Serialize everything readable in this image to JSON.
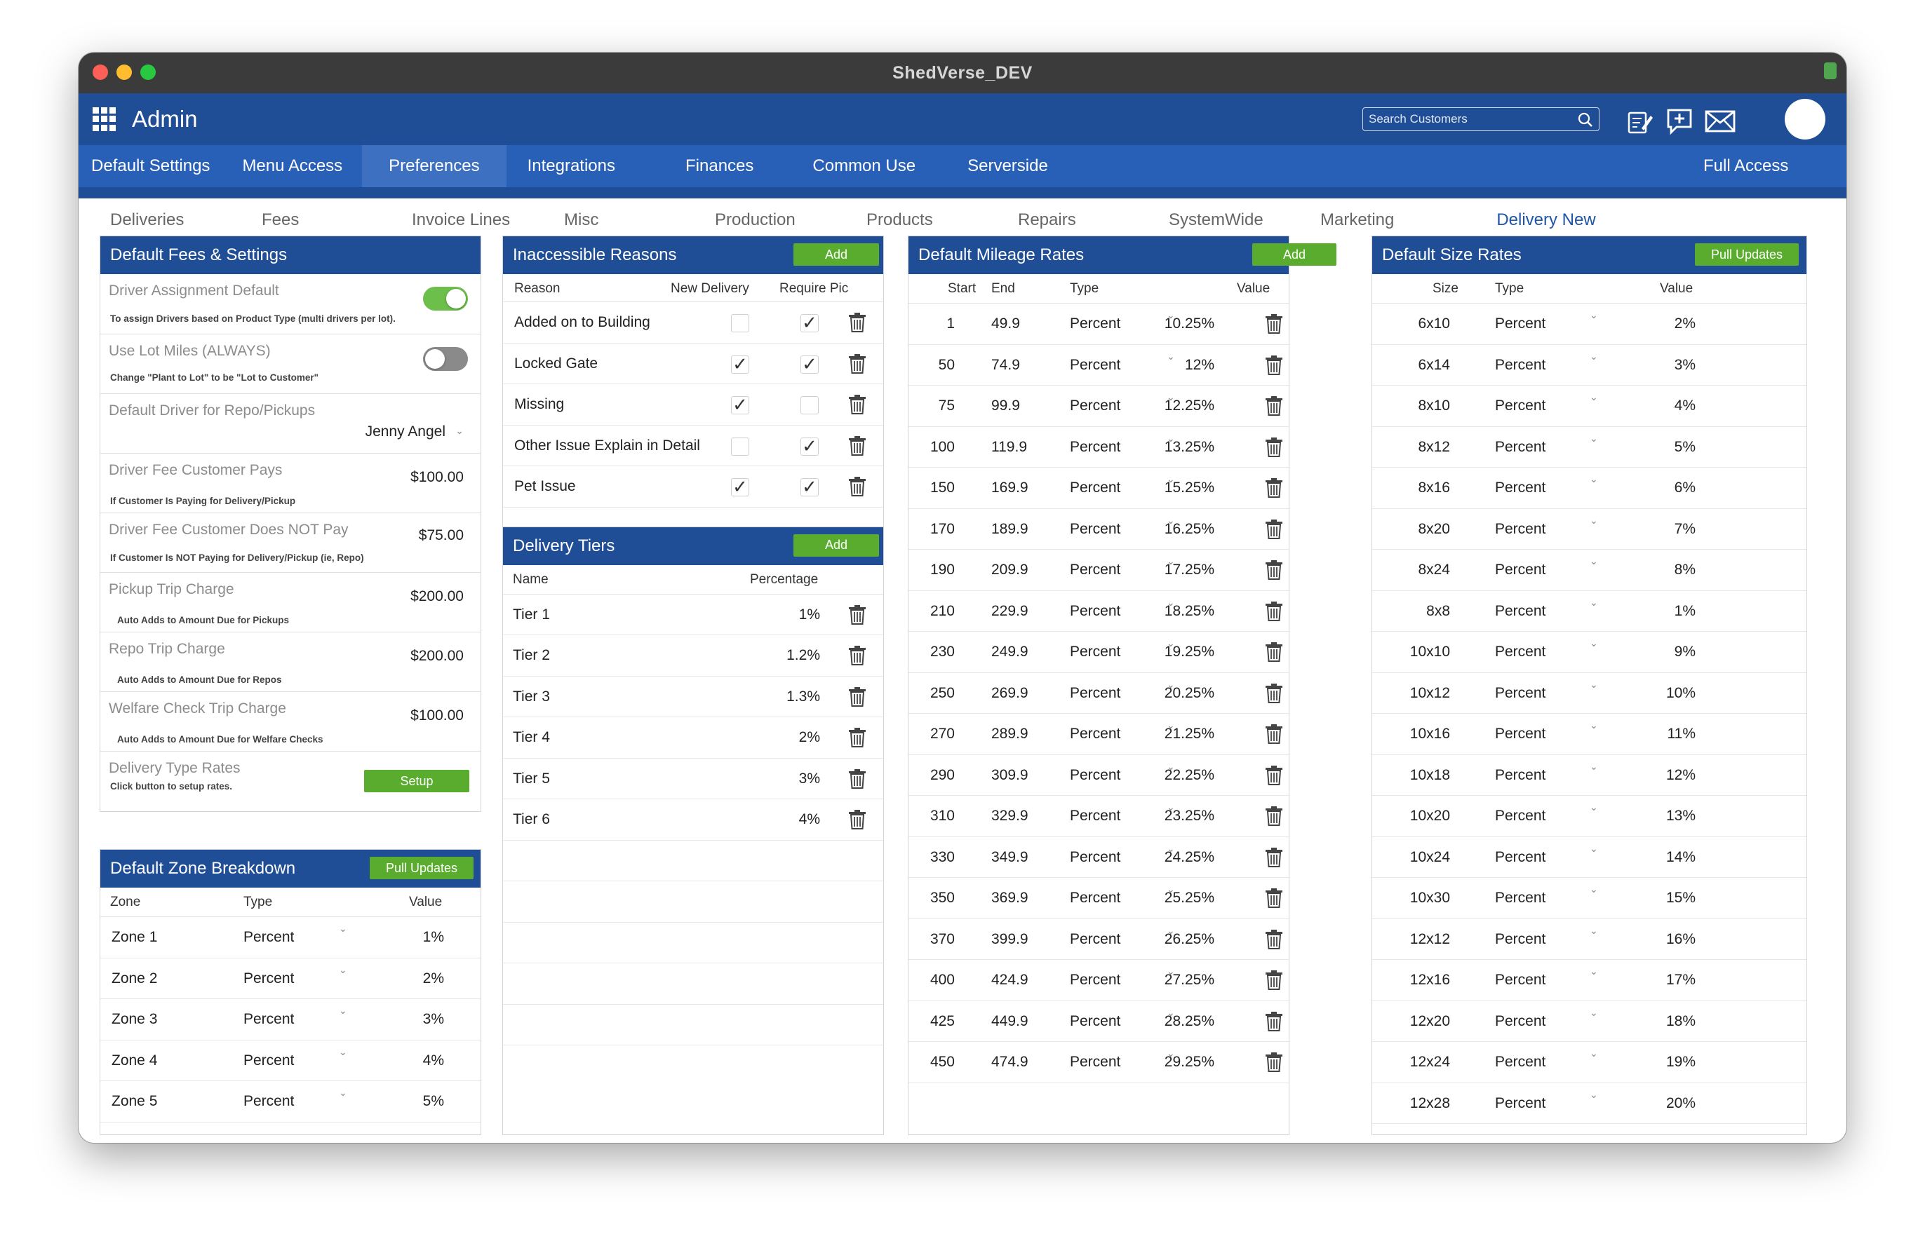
{
  "window": {
    "title": "ShedVerse_DEV"
  },
  "app": {
    "title": "Admin"
  },
  "search": {
    "placeholder": "Search Customers"
  },
  "tabs": [
    "Default Settings",
    "Menu Access",
    "Preferences",
    "Integrations",
    "Finances",
    "Common Use",
    "Serverside"
  ],
  "tab_right": "Full Access",
  "subtabs": [
    "Deliveries",
    "Fees",
    "Invoice Lines",
    "Misc",
    "Production",
    "Products",
    "Repairs",
    "SystemWide",
    "Marketing",
    "Delivery New"
  ],
  "fees": {
    "title": "Default Fees & Settings",
    "driver_assignment": {
      "label": "Driver Assignment Default",
      "sub": "To assign Drivers based on Product Type (multi drivers per lot).",
      "on": true
    },
    "lot_miles": {
      "label": "Use Lot Miles (ALWAYS)",
      "sub": "Change \"Plant to Lot\" to be \"Lot to Customer\"",
      "on": false
    },
    "default_driver": {
      "label": "Default Driver for Repo/Pickups",
      "value": "Jenny Angel"
    },
    "driver_fee_pays": {
      "label": "Driver Fee Customer Pays",
      "value": "$100.00",
      "sub": "If Customer Is Paying for Delivery/Pickup"
    },
    "driver_fee_not": {
      "label": "Driver Fee Customer Does NOT Pay",
      "value": "$75.00",
      "sub": "If Customer Is NOT Paying for Delivery/Pickup (ie, Repo)"
    },
    "pickup": {
      "label": "Pickup Trip Charge",
      "value": "$200.00",
      "sub": "Auto Adds to Amount Due for Pickups"
    },
    "repo": {
      "label": "Repo Trip Charge",
      "value": "$200.00",
      "sub": "Auto Adds to Amount Due for Repos"
    },
    "welfare": {
      "label": "Welfare Check Trip Charge",
      "value": "$100.00",
      "sub": "Auto Adds to Amount Due for Welfare Checks"
    },
    "delivery_type": {
      "label": "Delivery Type Rates",
      "sub": "Click button to setup rates.",
      "button": "Setup"
    }
  },
  "zones": {
    "title": "Default Zone Breakdown",
    "button": "Pull Updates",
    "headers": [
      "Zone",
      "Type",
      "Value"
    ],
    "rows": [
      {
        "zone": "Zone 1",
        "type": "Percent",
        "value": "1%"
      },
      {
        "zone": "Zone 2",
        "type": "Percent",
        "value": "2%"
      },
      {
        "zone": "Zone 3",
        "type": "Percent",
        "value": "3%"
      },
      {
        "zone": "Zone 4",
        "type": "Percent",
        "value": "4%"
      },
      {
        "zone": "Zone 5",
        "type": "Percent",
        "value": "5%"
      }
    ]
  },
  "reasons": {
    "title": "Inaccessible Reasons",
    "button": "Add",
    "headers": [
      "Reason",
      "New Delivery",
      "Require Pic"
    ],
    "rows": [
      {
        "reason": "Added on to Building",
        "new_delivery": false,
        "require_pic": true
      },
      {
        "reason": "Locked Gate",
        "new_delivery": true,
        "require_pic": true
      },
      {
        "reason": "Missing",
        "new_delivery": true,
        "require_pic": false
      },
      {
        "reason": "Other Issue Explain in Detail",
        "new_delivery": false,
        "require_pic": true
      },
      {
        "reason": "Pet Issue",
        "new_delivery": true,
        "require_pic": true
      }
    ]
  },
  "tiers": {
    "title": "Delivery Tiers",
    "button": "Add",
    "headers": [
      "Name",
      "Percentage"
    ],
    "rows": [
      {
        "name": "Tier 1",
        "pct": "1%"
      },
      {
        "name": "Tier 2",
        "pct": "1.2%"
      },
      {
        "name": "Tier 3",
        "pct": "1.3%"
      },
      {
        "name": "Tier 4",
        "pct": "2%"
      },
      {
        "name": "Tier 5",
        "pct": "3%"
      },
      {
        "name": "Tier 6",
        "pct": "4%"
      }
    ]
  },
  "mileage": {
    "title": "Default Mileage Rates",
    "button": "Add",
    "headers": [
      "Start",
      "End",
      "Type",
      "Value"
    ],
    "rows": [
      {
        "start": "1",
        "end": "49.9",
        "type": "Percent",
        "value": "10.25%"
      },
      {
        "start": "50",
        "end": "74.9",
        "type": "Percent",
        "value": "12%"
      },
      {
        "start": "75",
        "end": "99.9",
        "type": "Percent",
        "value": "12.25%"
      },
      {
        "start": "100",
        "end": "119.9",
        "type": "Percent",
        "value": "13.25%"
      },
      {
        "start": "150",
        "end": "169.9",
        "type": "Percent",
        "value": "15.25%"
      },
      {
        "start": "170",
        "end": "189.9",
        "type": "Percent",
        "value": "16.25%"
      },
      {
        "start": "190",
        "end": "209.9",
        "type": "Percent",
        "value": "17.25%"
      },
      {
        "start": "210",
        "end": "229.9",
        "type": "Percent",
        "value": "18.25%"
      },
      {
        "start": "230",
        "end": "249.9",
        "type": "Percent",
        "value": "19.25%"
      },
      {
        "start": "250",
        "end": "269.9",
        "type": "Percent",
        "value": "20.25%"
      },
      {
        "start": "270",
        "end": "289.9",
        "type": "Percent",
        "value": "21.25%"
      },
      {
        "start": "290",
        "end": "309.9",
        "type": "Percent",
        "value": "22.25%"
      },
      {
        "start": "310",
        "end": "329.9",
        "type": "Percent",
        "value": "23.25%"
      },
      {
        "start": "330",
        "end": "349.9",
        "type": "Percent",
        "value": "24.25%"
      },
      {
        "start": "350",
        "end": "369.9",
        "type": "Percent",
        "value": "25.25%"
      },
      {
        "start": "370",
        "end": "399.9",
        "type": "Percent",
        "value": "26.25%"
      },
      {
        "start": "400",
        "end": "424.9",
        "type": "Percent",
        "value": "27.25%"
      },
      {
        "start": "425",
        "end": "449.9",
        "type": "Percent",
        "value": "28.25%"
      },
      {
        "start": "450",
        "end": "474.9",
        "type": "Percent",
        "value": "29.25%"
      }
    ]
  },
  "sizes": {
    "title": "Default Size Rates",
    "button": "Pull Updates",
    "headers": [
      "Size",
      "Type",
      "Value"
    ],
    "rows": [
      {
        "size": "6x10",
        "type": "Percent",
        "value": "2%"
      },
      {
        "size": "6x14",
        "type": "Percent",
        "value": "3%"
      },
      {
        "size": "8x10",
        "type": "Percent",
        "value": "4%"
      },
      {
        "size": "8x12",
        "type": "Percent",
        "value": "5%"
      },
      {
        "size": "8x16",
        "type": "Percent",
        "value": "6%"
      },
      {
        "size": "8x20",
        "type": "Percent",
        "value": "7%"
      },
      {
        "size": "8x24",
        "type": "Percent",
        "value": "8%"
      },
      {
        "size": "8x8",
        "type": "Percent",
        "value": "1%"
      },
      {
        "size": "10x10",
        "type": "Percent",
        "value": "9%"
      },
      {
        "size": "10x12",
        "type": "Percent",
        "value": "10%"
      },
      {
        "size": "10x16",
        "type": "Percent",
        "value": "11%"
      },
      {
        "size": "10x18",
        "type": "Percent",
        "value": "12%"
      },
      {
        "size": "10x20",
        "type": "Percent",
        "value": "13%"
      },
      {
        "size": "10x24",
        "type": "Percent",
        "value": "14%"
      },
      {
        "size": "10x30",
        "type": "Percent",
        "value": "15%"
      },
      {
        "size": "12x12",
        "type": "Percent",
        "value": "16%"
      },
      {
        "size": "12x16",
        "type": "Percent",
        "value": "17%"
      },
      {
        "size": "12x20",
        "type": "Percent",
        "value": "18%"
      },
      {
        "size": "12x24",
        "type": "Percent",
        "value": "19%"
      },
      {
        "size": "12x28",
        "type": "Percent",
        "value": "20%"
      }
    ]
  },
  "colors": {
    "header_blue": "#1f4e96",
    "tab_blue": "#2860b7",
    "active_tab": "#3d70c0",
    "green": "#5aac2e",
    "toggle_on": "#6cbf4a",
    "toggle_off": "#8a8a8a"
  },
  "icons": [
    "apps-grid-icon",
    "search-icon",
    "notes-icon",
    "chat-add-icon",
    "mail-icon",
    "trash-icon",
    "chevron-down-icon",
    "checkmark-icon"
  ]
}
